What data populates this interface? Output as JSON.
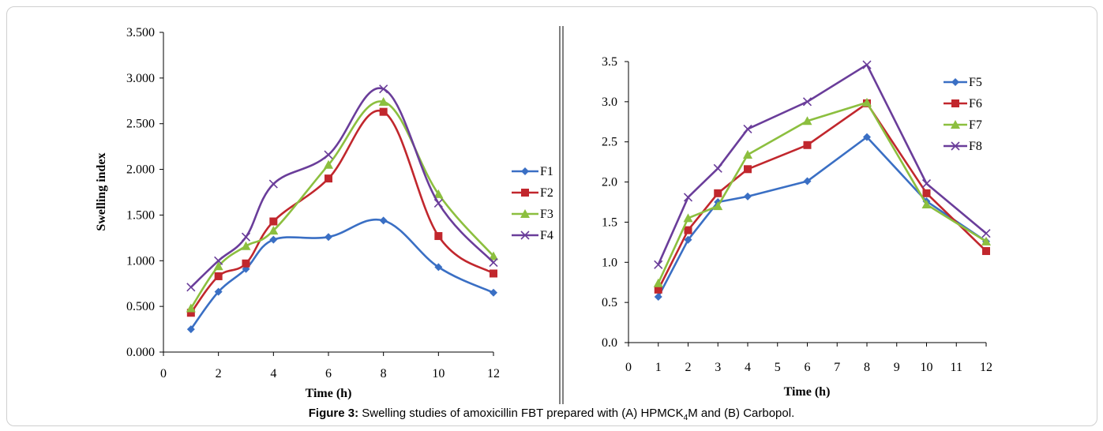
{
  "caption": {
    "label": "Figure 3:",
    "text_before": "Swelling studies of amoxicillin FBT prepared with (A) HPMCK",
    "subscript": "4",
    "text_after": "M and (B) Carbopol."
  },
  "chart_data": [
    {
      "type": "line",
      "panel": "A",
      "xlabel": "Time (h)",
      "ylabel": "Swelling index",
      "xlim": [
        0,
        12
      ],
      "ylim": [
        0,
        3.5
      ],
      "xticks": [
        0,
        2,
        4,
        6,
        8,
        10,
        12
      ],
      "xtick_labels": [
        "0",
        "2",
        "4",
        "6",
        "8",
        "10",
        "12"
      ],
      "yticks": [
        0,
        0.5,
        1.0,
        1.5,
        2.0,
        2.5,
        3.0,
        3.5
      ],
      "ytick_labels": [
        "0.000",
        "0.500",
        "1.000",
        "1.500",
        "2.000",
        "2.500",
        "3.000",
        "3.500"
      ],
      "smooth": true,
      "legend": "right",
      "x": [
        1,
        2,
        3,
        4,
        6,
        8,
        10,
        12
      ],
      "series": [
        {
          "name": "F1",
          "color": "#3a6fc4",
          "marker": "diamond",
          "values": [
            0.25,
            0.66,
            0.91,
            1.23,
            1.26,
            1.44,
            0.93,
            0.65
          ]
        },
        {
          "name": "F2",
          "color": "#c1272d",
          "marker": "square",
          "values": [
            0.43,
            0.83,
            0.97,
            1.43,
            1.9,
            2.63,
            1.27,
            0.86
          ]
        },
        {
          "name": "F3",
          "color": "#8cbf3f",
          "marker": "triangle",
          "values": [
            0.48,
            0.94,
            1.16,
            1.33,
            2.05,
            2.74,
            1.73,
            1.05
          ]
        },
        {
          "name": "F4",
          "color": "#6a3d9a",
          "marker": "x",
          "values": [
            0.71,
            1.0,
            1.26,
            1.84,
            2.16,
            2.88,
            1.63,
            0.98
          ]
        }
      ]
    },
    {
      "type": "line",
      "panel": "B",
      "xlabel": "Time (h)",
      "ylabel": "",
      "xlim": [
        0,
        12
      ],
      "ylim": [
        0,
        3.5
      ],
      "xticks": [
        0,
        1,
        2,
        3,
        4,
        5,
        6,
        7,
        8,
        9,
        10,
        11,
        12
      ],
      "xtick_labels": [
        "0",
        "1",
        "2",
        "3",
        "4",
        "5",
        "6",
        "7",
        "8",
        "9",
        "10",
        "11",
        "12"
      ],
      "yticks": [
        0,
        0.5,
        1.0,
        1.5,
        2.0,
        2.5,
        3.0,
        3.5
      ],
      "ytick_labels": [
        "0.0",
        "0.5",
        "1.0",
        "1.5",
        "2.0",
        "2.5",
        "3.0",
        "3.5"
      ],
      "smooth": false,
      "legend": "top-right",
      "x": [
        1,
        2,
        3,
        4,
        6,
        8,
        10,
        12
      ],
      "series": [
        {
          "name": "F5",
          "color": "#3a6fc4",
          "marker": "diamond",
          "values": [
            0.57,
            1.28,
            1.75,
            1.82,
            2.01,
            2.56,
            1.76,
            1.26
          ]
        },
        {
          "name": "F6",
          "color": "#c1272d",
          "marker": "square",
          "values": [
            0.66,
            1.4,
            1.86,
            2.16,
            2.46,
            2.98,
            1.86,
            1.14
          ]
        },
        {
          "name": "F7",
          "color": "#8cbf3f",
          "marker": "triangle",
          "values": [
            0.74,
            1.55,
            1.7,
            2.34,
            2.76,
            2.99,
            1.72,
            1.26
          ]
        },
        {
          "name": "F8",
          "color": "#6a3d9a",
          "marker": "x",
          "values": [
            0.97,
            1.81,
            2.17,
            2.66,
            3.0,
            3.46,
            1.98,
            1.36
          ]
        }
      ]
    }
  ]
}
